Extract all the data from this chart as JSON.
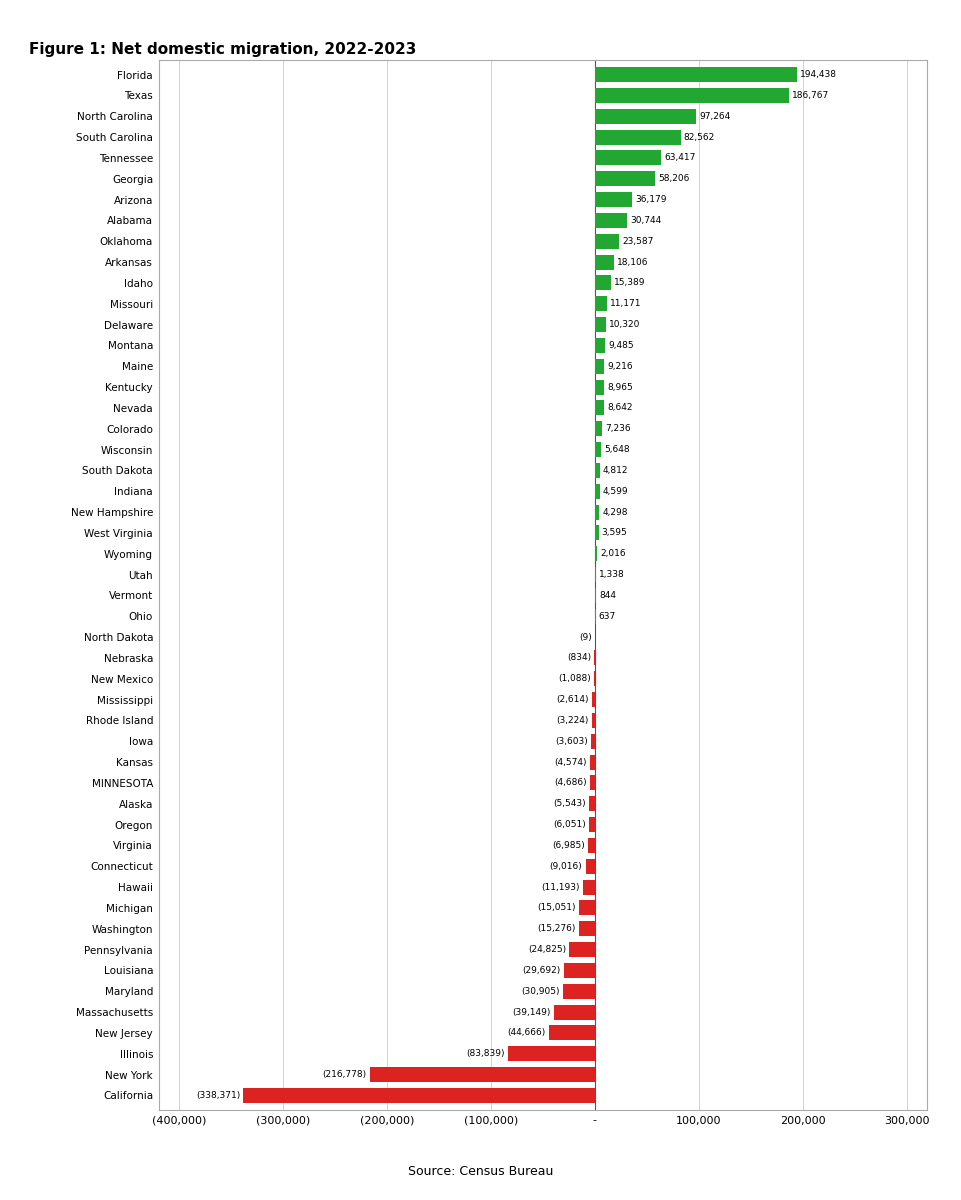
{
  "title": "Figure 1: Net domestic migration, 2022-2023",
  "source": "Source: Census Bureau",
  "states": [
    "Florida",
    "Texas",
    "North Carolina",
    "South Carolina",
    "Tennessee",
    "Georgia",
    "Arizona",
    "Alabama",
    "Oklahoma",
    "Arkansas",
    "Idaho",
    "Missouri",
    "Delaware",
    "Montana",
    "Maine",
    "Kentucky",
    "Nevada",
    "Colorado",
    "Wisconsin",
    "South Dakota",
    "Indiana",
    "New Hampshire",
    "West Virginia",
    "Wyoming",
    "Utah",
    "Vermont",
    "Ohio",
    "North Dakota",
    "Nebraska",
    "New Mexico",
    "Mississippi",
    "Rhode Island",
    "Iowa",
    "Kansas",
    "MINNESOTA",
    "Alaska",
    "Oregon",
    "Virginia",
    "Connecticut",
    "Hawaii",
    "Michigan",
    "Washington",
    "Pennsylvania",
    "Louisiana",
    "Maryland",
    "Massachusetts",
    "New Jersey",
    "Illinois",
    "New York",
    "California"
  ],
  "values": [
    194438,
    186767,
    97264,
    82562,
    63417,
    58206,
    36179,
    30744,
    23587,
    18106,
    15389,
    11171,
    10320,
    9485,
    9216,
    8965,
    8642,
    7236,
    5648,
    4812,
    4599,
    4298,
    3595,
    2016,
    1338,
    844,
    637,
    -9,
    -834,
    -1088,
    -2614,
    -3224,
    -3603,
    -4574,
    -4686,
    -5543,
    -6051,
    -6985,
    -9016,
    -11193,
    -15051,
    -15276,
    -24825,
    -29692,
    -30905,
    -39149,
    -44666,
    -83839,
    -216778,
    -338371
  ],
  "positive_color": "#22a832",
  "negative_color": "#dd2222",
  "fig_bg": "#ffffff",
  "chart_bg": "#ffffff",
  "xlim": [
    -420000,
    320000
  ],
  "xticks": [
    -400000,
    -300000,
    -200000,
    -100000,
    0,
    100000,
    200000,
    300000
  ],
  "xtick_labels": [
    "(400,000)",
    "(300,000)",
    "(200,000)",
    "(100,000)",
    "-",
    "100,000",
    "200,000",
    "300,000"
  ]
}
